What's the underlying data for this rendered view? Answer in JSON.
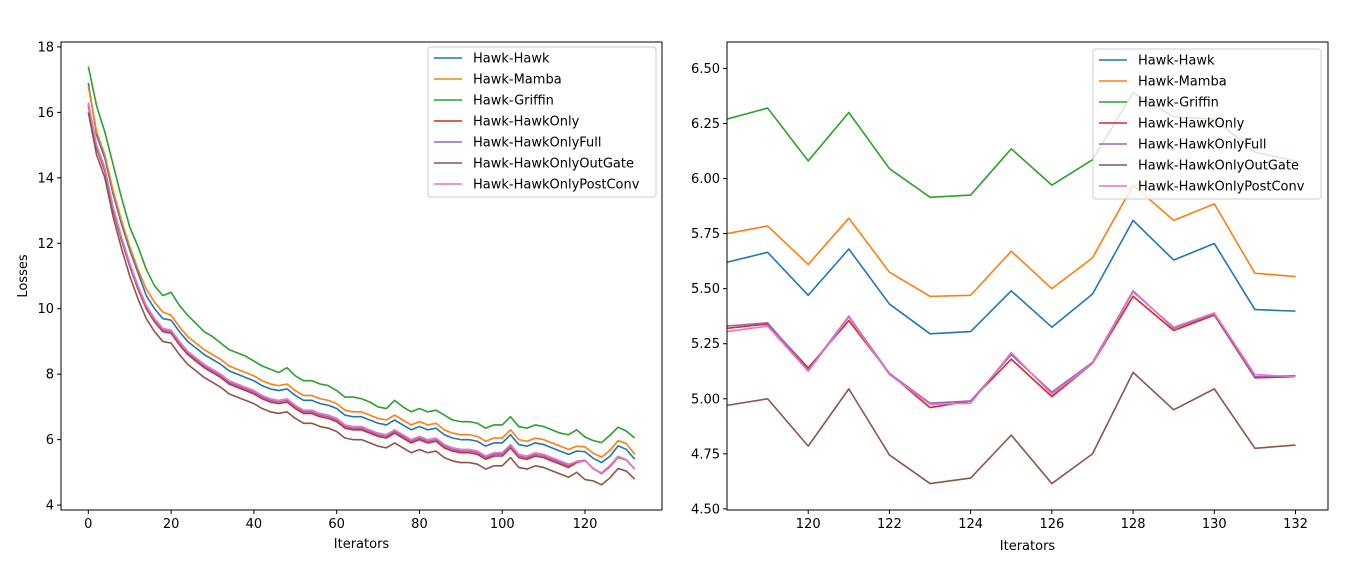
{
  "chart_data": [
    {
      "type": "line",
      "title": "",
      "xlabel": "Iterators",
      "ylabel": "Losses",
      "xlim": [
        -6.6,
        138.6
      ],
      "ylim": [
        3.85,
        18.15
      ],
      "xticks": [
        0,
        20,
        40,
        60,
        80,
        100,
        120
      ],
      "yticks": [
        4,
        6,
        8,
        10,
        12,
        14,
        16,
        18
      ],
      "legend_position": "top-right",
      "x": [
        0,
        2,
        4,
        6,
        8,
        10,
        12,
        14,
        16,
        18,
        20,
        22,
        24,
        26,
        28,
        30,
        32,
        34,
        36,
        38,
        40,
        42,
        44,
        46,
        48,
        50,
        52,
        54,
        56,
        58,
        60,
        62,
        64,
        66,
        68,
        70,
        72,
        74,
        76,
        78,
        80,
        82,
        84,
        86,
        88,
        90,
        92,
        94,
        96,
        98,
        100,
        102,
        104,
        106,
        108,
        110,
        112,
        114,
        116,
        118,
        120,
        122,
        124,
        126,
        128,
        130,
        132
      ],
      "series": [
        {
          "name": "Hawk-Hawk",
          "color": "#1f77b4",
          "values": [
            16.9,
            15.3,
            14.6,
            13.5,
            12.6,
            11.8,
            11.1,
            10.4,
            10.0,
            9.7,
            9.65,
            9.3,
            9.0,
            8.8,
            8.6,
            8.45,
            8.3,
            8.1,
            8.0,
            7.9,
            7.8,
            7.65,
            7.55,
            7.5,
            7.55,
            7.35,
            7.2,
            7.2,
            7.1,
            7.05,
            6.95,
            6.75,
            6.7,
            6.7,
            6.6,
            6.5,
            6.45,
            6.6,
            6.45,
            6.3,
            6.4,
            6.3,
            6.35,
            6.15,
            6.05,
            6.0,
            6.0,
            5.95,
            5.8,
            5.9,
            5.9,
            6.15,
            5.85,
            5.8,
            5.9,
            5.85,
            5.75,
            5.65,
            5.55,
            5.65,
            5.63,
            5.43,
            5.3,
            5.49,
            5.81,
            5.7,
            5.4
          ]
        },
        {
          "name": "Hawk-Mamba",
          "color": "#ff7f0e",
          "values": [
            16.8,
            15.4,
            14.7,
            13.6,
            12.7,
            11.9,
            11.2,
            10.6,
            10.2,
            9.9,
            9.8,
            9.45,
            9.15,
            8.95,
            8.75,
            8.6,
            8.45,
            8.25,
            8.15,
            8.05,
            7.95,
            7.8,
            7.7,
            7.65,
            7.7,
            7.5,
            7.35,
            7.35,
            7.25,
            7.2,
            7.1,
            6.9,
            6.85,
            6.85,
            6.75,
            6.65,
            6.6,
            6.75,
            6.6,
            6.45,
            6.55,
            6.45,
            6.5,
            6.3,
            6.2,
            6.15,
            6.15,
            6.1,
            5.95,
            6.05,
            6.05,
            6.3,
            6.0,
            5.95,
            6.05,
            6.0,
            5.9,
            5.8,
            5.7,
            5.8,
            5.78,
            5.58,
            5.47,
            5.67,
            5.97,
            5.88,
            5.55
          ]
        },
        {
          "name": "Hawk-Griffin",
          "color": "#2ca02c",
          "values": [
            17.4,
            16.2,
            15.4,
            14.4,
            13.4,
            12.5,
            11.9,
            11.2,
            10.7,
            10.4,
            10.5,
            10.1,
            9.8,
            9.55,
            9.3,
            9.15,
            8.95,
            8.75,
            8.65,
            8.55,
            8.4,
            8.25,
            8.15,
            8.05,
            8.2,
            7.95,
            7.8,
            7.8,
            7.7,
            7.65,
            7.5,
            7.3,
            7.3,
            7.25,
            7.15,
            7.0,
            6.95,
            7.2,
            7.0,
            6.85,
            6.95,
            6.85,
            6.9,
            6.75,
            6.6,
            6.55,
            6.55,
            6.5,
            6.35,
            6.45,
            6.45,
            6.7,
            6.4,
            6.35,
            6.45,
            6.4,
            6.3,
            6.2,
            6.15,
            6.3,
            6.08,
            5.97,
            5.91,
            6.13,
            6.38,
            6.26,
            6.05
          ]
        },
        {
          "name": "Hawk-HawkOnly",
          "color": "#d62728",
          "values": [
            16.2,
            14.9,
            14.2,
            13.0,
            12.1,
            11.3,
            10.6,
            10.0,
            9.6,
            9.3,
            9.25,
            8.9,
            8.6,
            8.4,
            8.2,
            8.05,
            7.9,
            7.7,
            7.6,
            7.5,
            7.4,
            7.25,
            7.15,
            7.1,
            7.15,
            6.95,
            6.8,
            6.8,
            6.7,
            6.65,
            6.55,
            6.35,
            6.3,
            6.3,
            6.2,
            6.1,
            6.05,
            6.2,
            6.05,
            5.9,
            6.0,
            5.9,
            5.95,
            5.75,
            5.65,
            5.6,
            5.6,
            5.55,
            5.4,
            5.5,
            5.5,
            5.75,
            5.45,
            5.4,
            5.5,
            5.45,
            5.35,
            5.25,
            5.15,
            5.3,
            5.36,
            5.12,
            4.96,
            5.18,
            5.46,
            5.38,
            5.1
          ]
        },
        {
          "name": "Hawk-HawkOnlyFull",
          "color": "#9467bd",
          "values": [
            16.25,
            14.95,
            14.25,
            13.05,
            12.15,
            11.35,
            10.65,
            10.05,
            9.65,
            9.35,
            9.3,
            8.95,
            8.65,
            8.45,
            8.25,
            8.1,
            7.95,
            7.75,
            7.65,
            7.55,
            7.45,
            7.3,
            7.2,
            7.15,
            7.2,
            7.0,
            6.85,
            6.85,
            6.75,
            6.7,
            6.6,
            6.4,
            6.35,
            6.35,
            6.25,
            6.15,
            6.1,
            6.25,
            6.1,
            5.95,
            6.05,
            5.95,
            6.0,
            5.8,
            5.7,
            5.65,
            5.65,
            5.6,
            5.45,
            5.55,
            5.55,
            5.8,
            5.5,
            5.45,
            5.55,
            5.5,
            5.4,
            5.3,
            5.2,
            5.34,
            5.37,
            5.11,
            4.98,
            5.2,
            5.49,
            5.38,
            5.1
          ]
        },
        {
          "name": "Hawk-HawkOnlyOutGate",
          "color": "#8c564b",
          "values": [
            16.0,
            14.7,
            14.0,
            12.8,
            11.85,
            11.0,
            10.3,
            9.7,
            9.3,
            9.0,
            8.95,
            8.6,
            8.3,
            8.1,
            7.9,
            7.75,
            7.6,
            7.4,
            7.3,
            7.2,
            7.1,
            6.95,
            6.85,
            6.8,
            6.85,
            6.65,
            6.5,
            6.5,
            6.4,
            6.35,
            6.25,
            6.05,
            6.0,
            6.0,
            5.9,
            5.8,
            5.75,
            5.9,
            5.75,
            5.6,
            5.7,
            5.6,
            5.65,
            5.45,
            5.35,
            5.3,
            5.3,
            5.25,
            5.1,
            5.2,
            5.2,
            5.45,
            5.15,
            5.1,
            5.2,
            5.15,
            5.05,
            4.95,
            4.85,
            5.0,
            4.78,
            4.74,
            4.62,
            4.83,
            5.12,
            5.04,
            4.79
          ]
        },
        {
          "name": "Hawk-HawkOnlyPostConv",
          "color": "#e377c2",
          "values": [
            16.3,
            15.0,
            14.3,
            13.1,
            12.2,
            11.4,
            10.7,
            10.1,
            9.7,
            9.4,
            9.35,
            9.0,
            8.7,
            8.5,
            8.3,
            8.15,
            8.0,
            7.8,
            7.7,
            7.6,
            7.5,
            7.35,
            7.25,
            7.2,
            7.25,
            7.05,
            6.9,
            6.9,
            6.8,
            6.75,
            6.65,
            6.45,
            6.4,
            6.4,
            6.3,
            6.2,
            6.15,
            6.3,
            6.15,
            6.0,
            6.1,
            6.0,
            6.05,
            5.85,
            5.75,
            5.7,
            5.7,
            5.65,
            5.5,
            5.6,
            5.6,
            5.85,
            5.55,
            5.5,
            5.6,
            5.55,
            5.45,
            5.35,
            5.25,
            5.32,
            5.35,
            5.12,
            4.98,
            5.21,
            5.48,
            5.39,
            5.1
          ]
        }
      ]
    },
    {
      "type": "line",
      "title": "",
      "xlabel": "Iterators",
      "ylabel": "",
      "xlim": [
        118.0,
        132.8
      ],
      "ylim": [
        4.495,
        6.62
      ],
      "xticks": [
        120,
        122,
        124,
        126,
        128,
        130,
        132
      ],
      "yticks": [
        "4.50",
        "4.75",
        "5.00",
        "5.25",
        "5.50",
        "5.75",
        "6.00",
        "6.25",
        "6.50"
      ],
      "legend_position": "top-right",
      "x": [
        118,
        119,
        120,
        121,
        122,
        123,
        124,
        125,
        126,
        127,
        128,
        129,
        130,
        131,
        132
      ],
      "series": [
        {
          "name": "Hawk-Hawk",
          "color": "#1f77b4",
          "values": [
            5.62,
            5.665,
            5.47,
            5.68,
            5.43,
            5.295,
            5.305,
            5.49,
            5.325,
            5.475,
            5.81,
            5.63,
            5.705,
            5.405,
            5.398
          ]
        },
        {
          "name": "Hawk-Mamba",
          "color": "#ff7f0e",
          "values": [
            5.75,
            5.785,
            5.61,
            5.82,
            5.575,
            5.465,
            5.47,
            5.67,
            5.5,
            5.64,
            5.97,
            5.81,
            5.885,
            5.57,
            5.555
          ]
        },
        {
          "name": "Hawk-Griffin",
          "color": "#2ca02c",
          "values": [
            6.27,
            6.32,
            6.08,
            6.3,
            6.045,
            5.915,
            5.925,
            6.135,
            5.97,
            6.085,
            6.39,
            6.28,
            6.27,
            6.12,
            6.08
          ]
        },
        {
          "name": "Hawk-HawkOnly",
          "color": "#d62728",
          "values": [
            5.32,
            5.34,
            5.14,
            5.355,
            5.115,
            4.96,
            4.99,
            5.18,
            5.01,
            5.16,
            5.465,
            5.31,
            5.38,
            5.095,
            5.1
          ]
        },
        {
          "name": "Hawk-HawkOnlyFull",
          "color": "#9467bd",
          "values": [
            5.33,
            5.345,
            5.13,
            5.375,
            5.115,
            4.98,
            4.99,
            5.2,
            5.03,
            5.165,
            5.49,
            5.32,
            5.385,
            5.1,
            5.105
          ]
        },
        {
          "name": "Hawk-HawkOnlyOutGate",
          "color": "#8c564b",
          "values": [
            4.97,
            5.0,
            4.785,
            5.045,
            4.745,
            4.615,
            4.64,
            4.835,
            4.615,
            4.75,
            5.12,
            4.95,
            5.045,
            4.775,
            4.79
          ]
        },
        {
          "name": "Hawk-HawkOnlyPostConv",
          "color": "#e377c2",
          "values": [
            5.305,
            5.33,
            5.125,
            5.37,
            5.11,
            4.975,
            4.98,
            5.21,
            5.02,
            5.16,
            5.485,
            5.325,
            5.39,
            5.11,
            5.1
          ]
        }
      ]
    }
  ]
}
